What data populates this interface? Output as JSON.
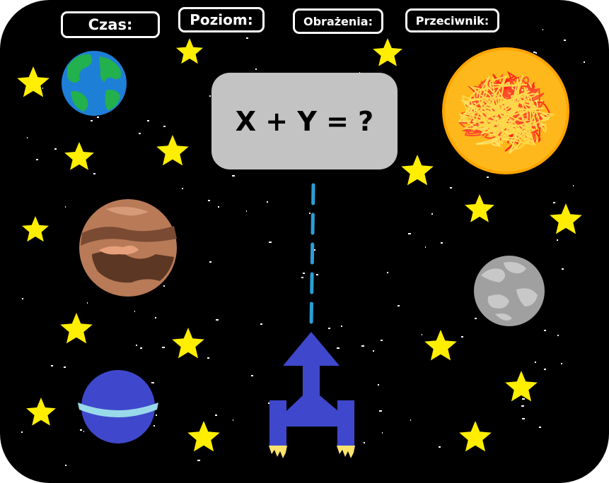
{
  "hud": {
    "time_label": "Czas:",
    "level_label": "Poziom:",
    "damage_label": "Obrażenia:",
    "opponent_label": "Przeciwnik:"
  },
  "question": {
    "text": "X + Y = ?"
  },
  "colors": {
    "space": "#000000",
    "star": "#ffee00",
    "ship": "#3f48cc",
    "laser": "#2a9fd6",
    "question_bg": "#c3c3c3"
  }
}
